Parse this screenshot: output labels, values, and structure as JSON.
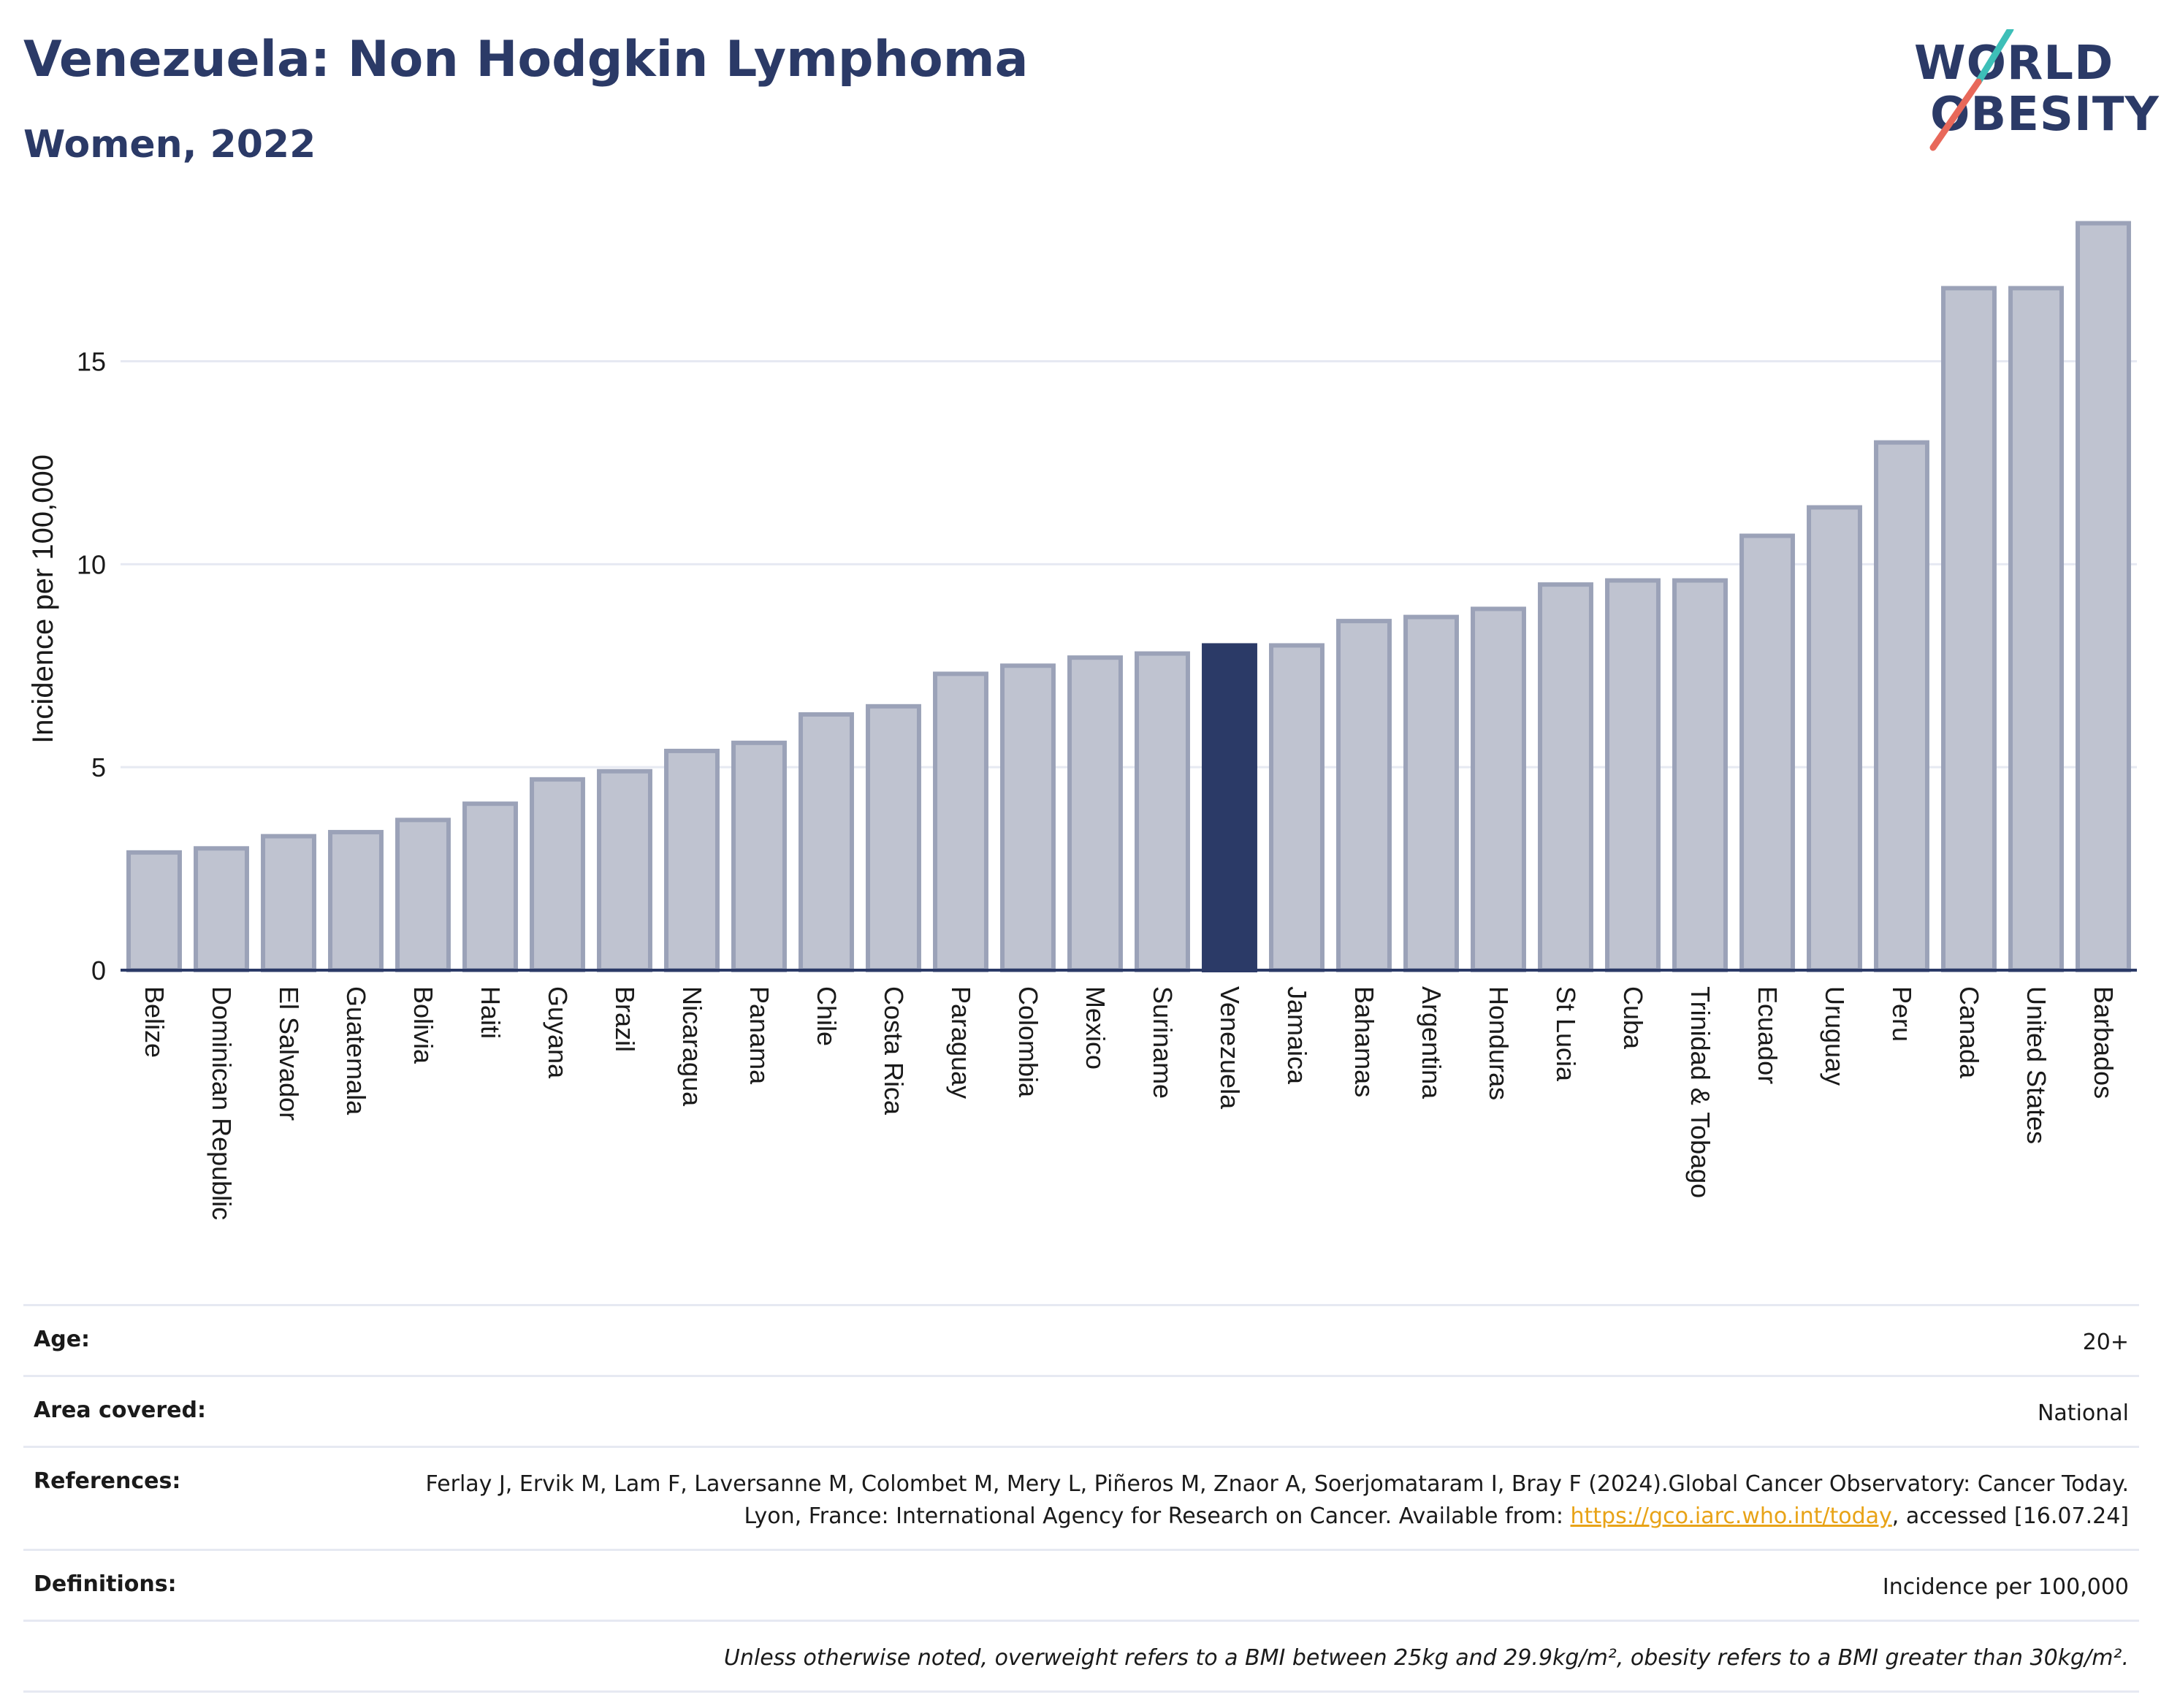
{
  "header": {
    "title": "Venezuela: Non Hodgkin Lymphoma",
    "subtitle": "Women, 2022"
  },
  "logo": {
    "line1": "WORLD",
    "line2": "OBESITY",
    "slash_colors": [
      "#3dbfb8",
      "#e8685a"
    ]
  },
  "colors": {
    "bar": "#bfc3d0",
    "bar_border": "#9ba2b8",
    "highlight": "#2b3a67",
    "grid": "#e6e9f2",
    "text": "#1a1a1a"
  },
  "chart_data": {
    "type": "bar",
    "ylabel": "Incidence per 100,000",
    "ylim": [
      0,
      18.5
    ],
    "yticks": [
      0,
      5,
      10,
      15
    ],
    "highlight": "Venezuela",
    "categories": [
      "Belize",
      "Dominican Republic",
      "El Salvador",
      "Guatemala",
      "Bolivia",
      "Haiti",
      "Guyana",
      "Brazil",
      "Nicaragua",
      "Panama",
      "Chile",
      "Costa Rica",
      "Paraguay",
      "Colombia",
      "Mexico",
      "Suriname",
      "Venezuela",
      "Jamaica",
      "Bahamas",
      "Argentina",
      "Honduras",
      "St Lucia",
      "Cuba",
      "Trinidad & Tobago",
      "Ecuador",
      "Uruguay",
      "Peru",
      "Canada",
      "United States",
      "Barbados"
    ],
    "values": [
      2.9,
      3.0,
      3.3,
      3.4,
      3.7,
      4.1,
      4.7,
      4.9,
      5.4,
      5.6,
      6.3,
      6.5,
      7.3,
      7.5,
      7.7,
      7.8,
      8.0,
      8.0,
      8.6,
      8.7,
      8.9,
      9.5,
      9.6,
      9.6,
      10.7,
      11.4,
      13.0,
      16.8,
      16.8,
      18.4
    ]
  },
  "info": {
    "age_label": "Age:",
    "age_value": "20+",
    "area_label": "Area covered:",
    "area_value": "National",
    "references_label": "References:",
    "references_text_1": "Ferlay J, Ervik M, Lam F, Laversanne M, Colombet M, Mery L, Piñeros M, Znaor A, Soerjomataram I, Bray F (2024).Global Cancer Observatory: Cancer Today. Lyon, France: International Agency for Research on Cancer. Available from: ",
    "references_link": "https://gco.iarc.who.int/today",
    "references_text_2": ", accessed [16.07.24]",
    "definitions_label": "Definitions:",
    "definitions_value": "Incidence per 100,000",
    "note": "Unless otherwise noted, overweight refers to a BMI between 25kg and 29.9kg/m², obesity refers to a BMI greater than 30kg/m²."
  }
}
